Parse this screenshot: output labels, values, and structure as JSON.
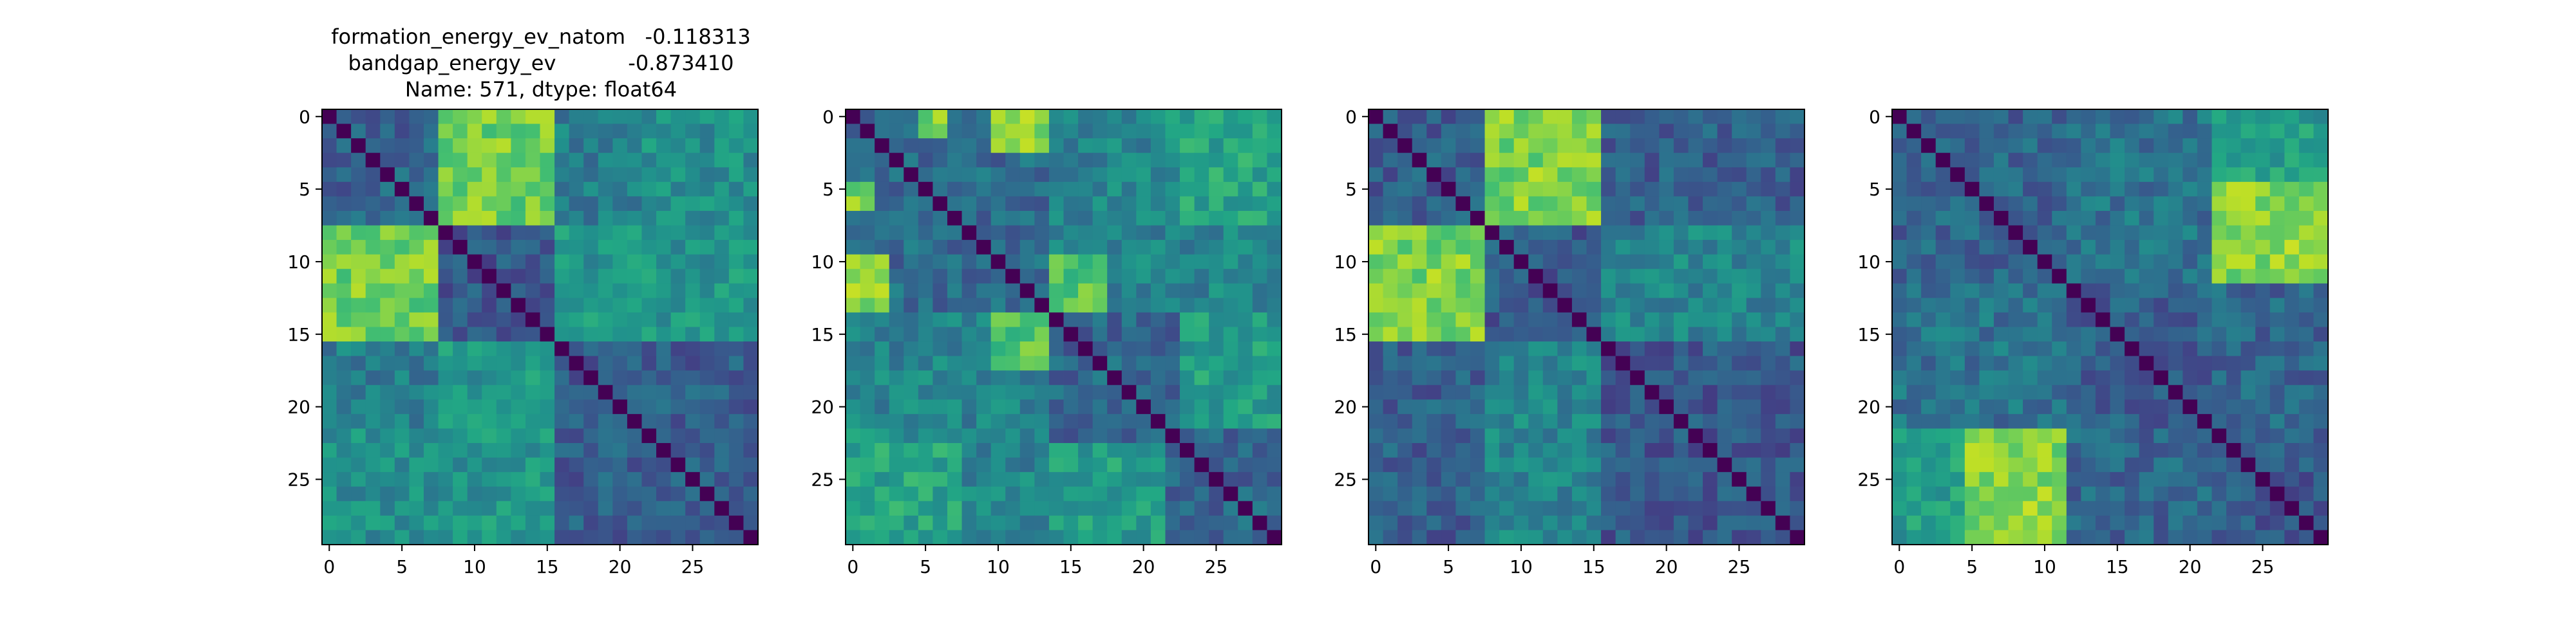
{
  "title": {
    "line1": "formation_energy_ev_natom   -0.118313",
    "line2": "bandgap_energy_ev           -0.873410",
    "line3": "Name: 571, dtype: float64"
  },
  "chart_data": [
    {
      "type": "heatmap",
      "size": 30,
      "colormap": "viridis",
      "diagonal": 0,
      "blocks": [
        {
          "rows": [
            0,
            7
          ],
          "cols": [
            8,
            15
          ],
          "level": 0.78
        },
        {
          "rows": [
            16,
            29
          ],
          "cols": [
            8,
            15
          ],
          "level": 0.52
        },
        {
          "rows": [
            0,
            7
          ],
          "cols": [
            16,
            29
          ],
          "level": 0.42
        },
        {
          "rows": [
            0,
            7
          ],
          "cols": [
            0,
            7
          ],
          "level": 0.32
        },
        {
          "rows": [
            8,
            15
          ],
          "cols": [
            8,
            15
          ],
          "level": 0.28
        },
        {
          "rows": [
            16,
            29
          ],
          "cols": [
            16,
            29
          ],
          "level": 0.3
        },
        {
          "rows": [
            0,
            7
          ],
          "cols": [
            22,
            29
          ],
          "level": 0.5
        }
      ],
      "xticks": [
        0,
        5,
        10,
        15,
        20,
        25
      ],
      "yticks": [
        0,
        5,
        10,
        15,
        20,
        25
      ],
      "xlim": [
        -0.5,
        29.5
      ],
      "ylim": [
        29.5,
        -0.5
      ]
    },
    {
      "type": "heatmap",
      "size": 30,
      "colormap": "viridis",
      "diagonal": 0,
      "blocks": [
        {
          "rows": [
            0,
            13
          ],
          "cols": [
            0,
            13
          ],
          "level": 0.35
        },
        {
          "rows": [
            14,
            29
          ],
          "cols": [
            14,
            29
          ],
          "level": 0.33
        },
        {
          "rows": [
            0,
            13
          ],
          "cols": [
            14,
            29
          ],
          "level": 0.45
        },
        {
          "rows": [
            0,
            2
          ],
          "cols": [
            10,
            13
          ],
          "level": 0.8
        },
        {
          "rows": [
            10,
            13
          ],
          "cols": [
            0,
            1
          ],
          "level": 0.85
        },
        {
          "rows": [
            5,
            6
          ],
          "cols": [
            0,
            1
          ],
          "level": 0.8
        },
        {
          "rows": [
            0,
            1
          ],
          "cols": [
            22,
            29
          ],
          "level": 0.65
        },
        {
          "rows": [
            14,
            17
          ],
          "cols": [
            10,
            13
          ],
          "level": 0.72
        },
        {
          "rows": [
            23,
            29
          ],
          "cols": [
            0,
            7
          ],
          "level": 0.58
        },
        {
          "rows": [
            23,
            29
          ],
          "cols": [
            14,
            21
          ],
          "level": 0.55
        }
      ],
      "xticks": [
        0,
        5,
        10,
        15,
        20,
        25
      ],
      "yticks": [
        0,
        5,
        10,
        15,
        20,
        25
      ],
      "xlim": [
        -0.5,
        29.5
      ],
      "ylim": [
        29.5,
        -0.5
      ]
    },
    {
      "type": "heatmap",
      "size": 30,
      "colormap": "viridis",
      "diagonal": 0,
      "blocks": [
        {
          "rows": [
            0,
            7
          ],
          "cols": [
            8,
            15
          ],
          "level": 0.8
        },
        {
          "rows": [
            8,
            15
          ],
          "cols": [
            16,
            29
          ],
          "level": 0.45
        },
        {
          "rows": [
            16,
            29
          ],
          "cols": [
            0,
            7
          ],
          "level": 0.45
        },
        {
          "rows": [
            16,
            29
          ],
          "cols": [
            8,
            15
          ],
          "level": 0.45
        },
        {
          "rows": [
            0,
            7
          ],
          "cols": [
            0,
            7
          ],
          "level": 0.3
        },
        {
          "rows": [
            8,
            15
          ],
          "cols": [
            8,
            15
          ],
          "level": 0.28
        },
        {
          "rows": [
            16,
            29
          ],
          "cols": [
            16,
            29
          ],
          "level": 0.28
        },
        {
          "rows": [
            0,
            7
          ],
          "cols": [
            16,
            29
          ],
          "level": 0.3
        }
      ],
      "xticks": [
        0,
        5,
        10,
        15,
        20,
        25
      ],
      "yticks": [
        0,
        5,
        10,
        15,
        20,
        25
      ],
      "xlim": [
        -0.5,
        29.5
      ],
      "ylim": [
        29.5,
        -0.5
      ]
    },
    {
      "type": "heatmap",
      "size": 30,
      "colormap": "viridis",
      "diagonal": 0,
      "blocks": [
        {
          "rows": [
            0,
            11
          ],
          "cols": [
            0,
            11
          ],
          "level": 0.32
        },
        {
          "rows": [
            12,
            21
          ],
          "cols": [
            12,
            21
          ],
          "level": 0.3
        },
        {
          "rows": [
            22,
            29
          ],
          "cols": [
            22,
            29
          ],
          "level": 0.28
        },
        {
          "rows": [
            0,
            4
          ],
          "cols": [
            22,
            29
          ],
          "level": 0.55
        },
        {
          "rows": [
            5,
            11
          ],
          "cols": [
            22,
            29
          ],
          "level": 0.82
        },
        {
          "rows": [
            22,
            29
          ],
          "cols": [
            5,
            11
          ],
          "level": 0.82
        },
        {
          "rows": [
            22,
            29
          ],
          "cols": [
            0,
            4
          ],
          "level": 0.55
        },
        {
          "rows": [
            12,
            21
          ],
          "cols": [
            0,
            11
          ],
          "level": 0.42
        },
        {
          "rows": [
            0,
            11
          ],
          "cols": [
            12,
            21
          ],
          "level": 0.38
        }
      ],
      "xticks": [
        0,
        5,
        10,
        15,
        20,
        25
      ],
      "yticks": [
        0,
        5,
        10,
        15,
        20,
        25
      ],
      "xlim": [
        -0.5,
        29.5
      ],
      "ylim": [
        29.5,
        -0.5
      ]
    }
  ]
}
